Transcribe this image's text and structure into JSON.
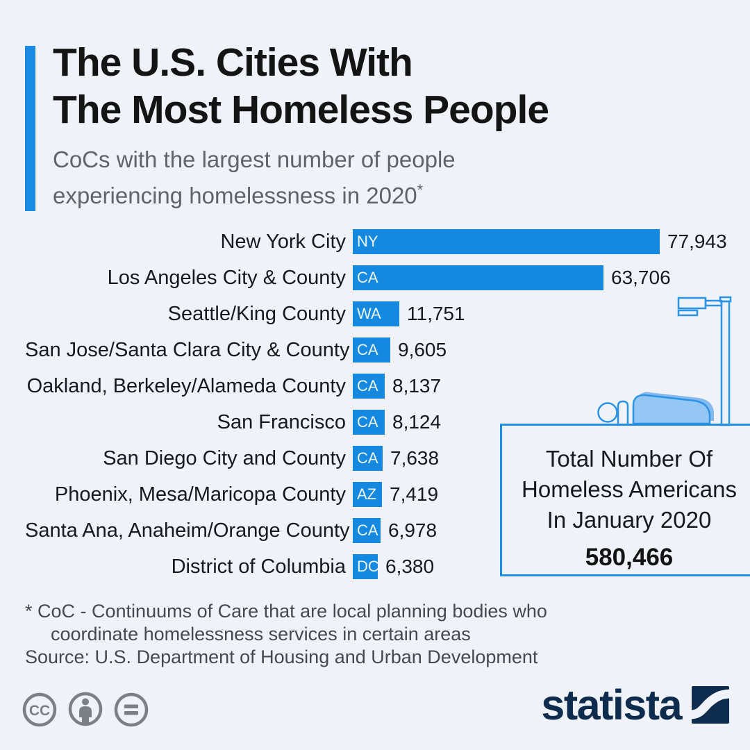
{
  "page": {
    "background_color": "#eff3f9",
    "accent_color": "#1a8ae2"
  },
  "header": {
    "title_lines": [
      "The U.S. Cities With",
      "The Most Homeless People"
    ],
    "subtitle_lines": [
      "CoCs with the largest number of people",
      "experiencing homelessness in 2020"
    ],
    "subtitle_footnote_marker": "*"
  },
  "chart_data": {
    "type": "bar",
    "orientation": "horizontal",
    "title": "The U.S. Cities With The Most Homeless People",
    "value_description": "People experiencing homelessness in 2020",
    "xlim": [
      0,
      77943
    ],
    "bar_color": "#1588e0",
    "rows": [
      {
        "label": "New York City",
        "state": "NY",
        "value": 77943,
        "display_value": "77,943"
      },
      {
        "label": "Los Angeles City & County",
        "state": "CA",
        "value": 63706,
        "display_value": "63,706"
      },
      {
        "label": "Seattle/King County",
        "state": "WA",
        "value": 11751,
        "display_value": "11,751"
      },
      {
        "label": "San Jose/Santa Clara City & County",
        "state": "CA",
        "value": 9605,
        "display_value": "9,605"
      },
      {
        "label": "Oakland, Berkeley/Alameda County",
        "state": "CA",
        "value": 8137,
        "display_value": "8,137"
      },
      {
        "label": "San Francisco",
        "state": "CA",
        "value": 8124,
        "display_value": "8,124"
      },
      {
        "label": "San Diego City and County",
        "state": "CA",
        "value": 7638,
        "display_value": "7,638"
      },
      {
        "label": "Phoenix, Mesa/Maricopa County",
        "state": "AZ",
        "value": 7419,
        "display_value": "7,419"
      },
      {
        "label": "Santa Ana, Anaheim/Orange County",
        "state": "CA",
        "value": 6978,
        "display_value": "6,978"
      },
      {
        "label": "District of Columbia",
        "state": "DC",
        "value": 6380,
        "display_value": "6,380"
      }
    ]
  },
  "callout": {
    "lines": [
      "Total Number Of",
      "Homeless Americans",
      "In January 2020"
    ],
    "total": "580,466"
  },
  "footnotes": {
    "line1": "* CoC - Continuums of Care that are local planning bodies who",
    "line2": "coordinate homelessness services in certain areas",
    "source": "Source: U.S. Department of Housing and Urban Development"
  },
  "footer": {
    "license_cc_label": "CC",
    "brand": "statista"
  }
}
